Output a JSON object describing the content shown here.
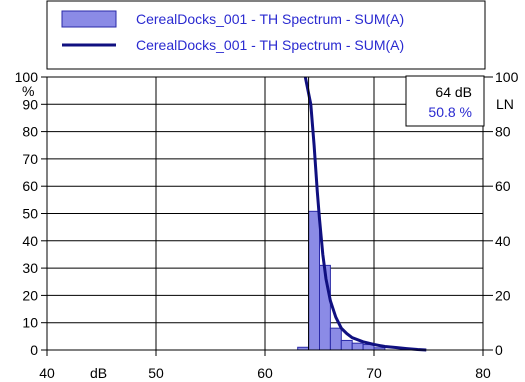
{
  "colors": {
    "bar_fill": "#8b8be6",
    "bar_stroke": "#2a2aa8",
    "line": "#101080",
    "legend_text": "#2a2ad0",
    "cursor_pct_text": "#2a2ad0",
    "grid": "#000000"
  },
  "legend": {
    "histogram_label": "CerealDocks_001 - TH Spectrum - SUM(A)",
    "line_label": "CerealDocks_001 - TH Spectrum - SUM(A)"
  },
  "cursor": {
    "db_text": "64 dB",
    "pct_text": "50.8 %",
    "x": 64
  },
  "chart_data": {
    "type": "bar",
    "xlim": [
      40,
      80
    ],
    "ylim": [
      0,
      100
    ],
    "x_ticks": [
      40,
      50,
      60,
      70,
      80
    ],
    "left_y_ticks": [
      0,
      10,
      20,
      30,
      40,
      50,
      60,
      70,
      80,
      90,
      100
    ],
    "right_y_ticks": [
      0,
      20,
      40,
      60,
      80,
      100
    ],
    "xlabel": "dB",
    "ylabel_left": "%",
    "ylabel_right": "LN",
    "grid": true,
    "legend_position": "top",
    "series": [
      {
        "name": "CerealDocks_001 - TH Spectrum - SUM(A)",
        "kind": "histogram",
        "bin_width": 1,
        "x": [
          63,
          64,
          65,
          66,
          67,
          68,
          69,
          70
        ],
        "values": [
          1,
          50.8,
          31,
          8,
          3.5,
          2.5,
          2,
          0.8
        ]
      },
      {
        "name": "CerealDocks_001 - TH Spectrum - SUM(A)",
        "kind": "line",
        "x": [
          63.7,
          64.2,
          64.5,
          64.8,
          65.0,
          65.3,
          65.6,
          66.0,
          66.5,
          67.0,
          67.5,
          68.0,
          69.0,
          70.0,
          71.0,
          72.0,
          73.0,
          74.0,
          74.8
        ],
        "values": [
          100,
          90,
          75,
          58,
          48,
          35,
          26,
          18,
          12,
          8,
          6,
          4.5,
          3,
          2,
          1.3,
          0.9,
          0.5,
          0.2,
          0
        ]
      }
    ]
  }
}
